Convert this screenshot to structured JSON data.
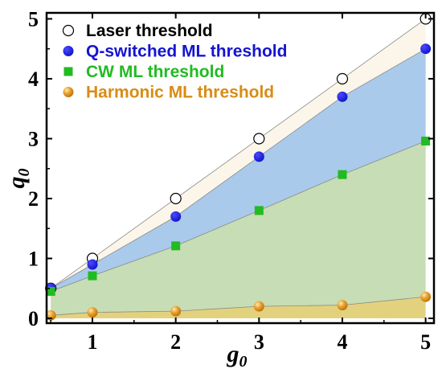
{
  "chart_data": {
    "type": "area",
    "title": "",
    "xlabel": "g",
    "xlabel_sub": "0",
    "ylabel": "q",
    "ylabel_sub": "0",
    "xlim": [
      0.45,
      5.1
    ],
    "ylim": [
      -0.08,
      5.1
    ],
    "xticks": [
      1,
      2,
      3,
      4,
      5
    ],
    "yticks": [
      0,
      1,
      2,
      3,
      4,
      5
    ],
    "x": [
      0.5,
      1,
      2,
      3,
      4,
      5
    ],
    "grid": false,
    "legend_position": "top-left",
    "series": [
      {
        "name": "Laser threshold",
        "values": [
          0.5,
          1.0,
          2.0,
          3.0,
          4.0,
          5.0
        ],
        "marker": "open-circle",
        "color": "#000000",
        "fill": "#fcf6ea"
      },
      {
        "name": "Q-switched ML threshold",
        "values": [
          0.5,
          0.9,
          1.7,
          2.7,
          3.7,
          4.5
        ],
        "marker": "circle",
        "color": "#1f1fd6",
        "fill": "#a9caea"
      },
      {
        "name": "CW ML threshold",
        "values": [
          0.45,
          0.71,
          1.21,
          1.8,
          2.4,
          2.96
        ],
        "marker": "square",
        "color": "#22bb22",
        "fill": "#c7ddb5"
      },
      {
        "name": "Harmonic ML threshold",
        "values": [
          0.05,
          0.1,
          0.12,
          0.2,
          0.22,
          0.36
        ],
        "marker": "sphere",
        "color": "#d98c14",
        "fill": "#e3d27d"
      }
    ]
  }
}
